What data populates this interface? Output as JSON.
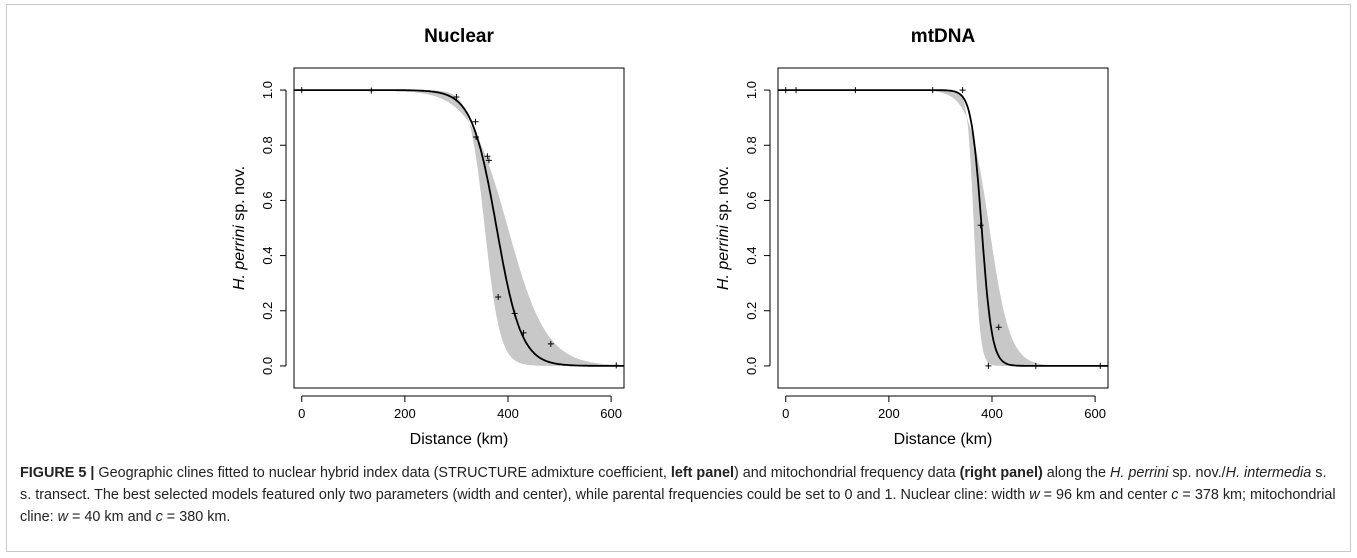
{
  "chart_data": [
    {
      "type": "line",
      "title": "Nuclear",
      "xlabel": "Distance (km)",
      "ylabel_italic": "H. perrini",
      "ylabel_rest": " sp. nov.",
      "xlim": [
        -15,
        625
      ],
      "ylim": [
        -0.08,
        1.08
      ],
      "xticks": [
        0,
        200,
        400,
        600
      ],
      "yticks": [
        0.0,
        0.2,
        0.4,
        0.6,
        0.8,
        1.0
      ],
      "xtick_labels": [
        "0",
        "200",
        "400",
        "600"
      ],
      "ytick_labels": [
        "0.0",
        "0.2",
        "0.4",
        "0.6",
        "0.8",
        "1.0"
      ],
      "cline": {
        "center_km": 378,
        "width_km": 96
      },
      "ci_band": {
        "center_low_km": 355,
        "width_low_km": 60,
        "center_high_km": 400,
        "width_high_km": 150
      },
      "points": [
        {
          "x": 0,
          "y": 1.0
        },
        {
          "x": 135,
          "y": 0.998
        },
        {
          "x": 300,
          "y": 0.975
        },
        {
          "x": 337,
          "y": 0.885
        },
        {
          "x": 338,
          "y": 0.83
        },
        {
          "x": 360,
          "y": 0.76
        },
        {
          "x": 363,
          "y": 0.745
        },
        {
          "x": 381,
          "y": 0.25
        },
        {
          "x": 413,
          "y": 0.19
        },
        {
          "x": 430,
          "y": 0.12
        },
        {
          "x": 483,
          "y": 0.08
        },
        {
          "x": 610,
          "y": 0.002
        }
      ],
      "grid": false,
      "legend": "none"
    },
    {
      "type": "line",
      "title": "mtDNA",
      "xlabel": "Distance (km)",
      "ylabel_italic": "H. perrini",
      "ylabel_rest": " sp. nov.",
      "xlim": [
        -15,
        625
      ],
      "ylim": [
        -0.08,
        1.08
      ],
      "xticks": [
        0,
        200,
        400,
        600
      ],
      "yticks": [
        0.0,
        0.2,
        0.4,
        0.6,
        0.8,
        1.0
      ],
      "xtick_labels": [
        "0",
        "200",
        "400",
        "600"
      ],
      "ytick_labels": [
        "0.0",
        "0.2",
        "0.4",
        "0.6",
        "0.8",
        "1.0"
      ],
      "cline": {
        "center_km": 380,
        "width_km": 40
      },
      "ci_band": {
        "center_low_km": 365,
        "width_low_km": 25,
        "center_high_km": 395,
        "width_high_km": 80
      },
      "points": [
        {
          "x": 0,
          "y": 1.0
        },
        {
          "x": 20,
          "y": 1.0
        },
        {
          "x": 135,
          "y": 1.0
        },
        {
          "x": 285,
          "y": 1.0
        },
        {
          "x": 343,
          "y": 1.0
        },
        {
          "x": 378,
          "y": 0.51
        },
        {
          "x": 393,
          "y": 0.0
        },
        {
          "x": 413,
          "y": 0.14
        },
        {
          "x": 485,
          "y": 0.0
        },
        {
          "x": 610,
          "y": 0.0
        }
      ],
      "grid": false,
      "legend": "none"
    }
  ],
  "caption": {
    "label": "FIGURE 5 |",
    "seg1": " Geographic clines fitted to nuclear hybrid index data (STRUCTURE admixture coefficient, ",
    "bold1": "left panel",
    "seg2": ") and mitochondrial frequency data ",
    "bold2": "(right panel)",
    "seg3": " along the ",
    "it1": "H. perrini",
    "seg4": " sp. nov./",
    "it2": "H. intermedia",
    "seg5": " s. s. transect. The best selected models featured only two parameters (width and center), while parental frequencies could be set to 0 and 1. Nuclear cline: width ",
    "it_w1": "w",
    "seg6": " = 96 km and center ",
    "it_c1": "c",
    "seg7": " = 378 km; mitochondrial cline: ",
    "it_w2": "w",
    "seg8": " = 40 km and ",
    "it_c2": "c",
    "seg9": " = 380 km."
  },
  "colors": {
    "band": "#c8c8c8",
    "line": "#000000",
    "points": "#000000"
  }
}
